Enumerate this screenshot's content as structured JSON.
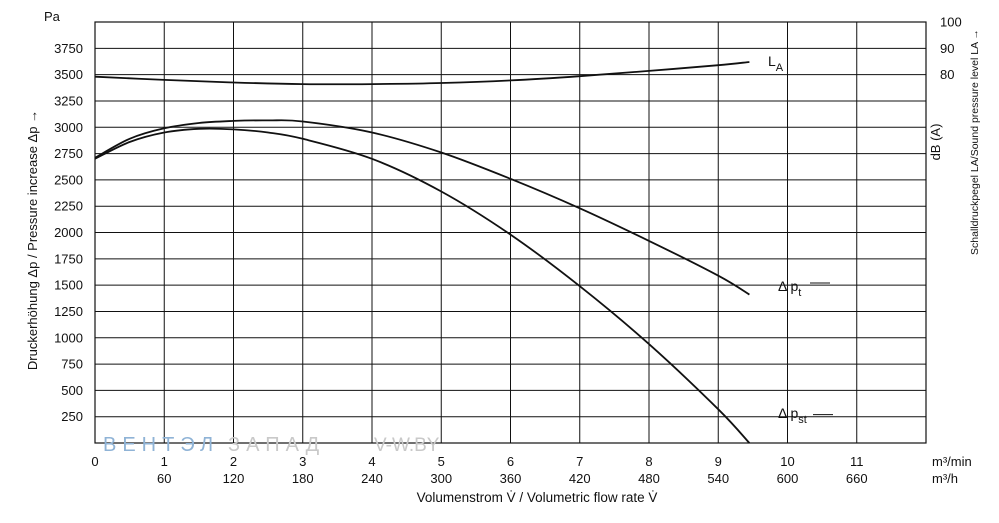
{
  "chart_data": {
    "type": "line",
    "y_left": {
      "unit": "Pa",
      "label": "Druckerhöhung Δp / Pressure increase  Δp →",
      "ticks": [
        250,
        500,
        750,
        1000,
        1250,
        1500,
        1750,
        2000,
        2250,
        2500,
        2750,
        3000,
        3250,
        3500,
        3750
      ],
      "range": [
        0,
        4000
      ]
    },
    "y_right": {
      "unit": "dB (A)",
      "label": "Schalldruckpegel LA/Sound pressure level LA →",
      "ticks": [
        80,
        90,
        100
      ],
      "range": [
        80,
        100
      ]
    },
    "x_primary": {
      "unit": "m³/min",
      "ticks": [
        0,
        1,
        2,
        3,
        4,
        5,
        6,
        7,
        8,
        9,
        10,
        11
      ],
      "range": [
        0,
        12
      ]
    },
    "x_secondary": {
      "unit": "m³/h",
      "ticks": [
        60,
        120,
        180,
        240,
        300,
        360,
        420,
        480,
        540,
        600,
        660
      ]
    },
    "xlabel": "Volumenstrom V̇ / Volumetric flow rate V̇",
    "grid": true,
    "series": [
      {
        "name": "LA",
        "axis": "left_scale",
        "x": [
          0,
          1,
          2,
          3,
          4,
          5,
          6,
          7,
          8,
          9,
          9.45
        ],
        "y": [
          3480,
          3450,
          3425,
          3410,
          3410,
          3420,
          3445,
          3485,
          3535,
          3590,
          3620
        ]
      },
      {
        "name": "Δ pt",
        "x": [
          0,
          0.5,
          1,
          1.5,
          2,
          2.5,
          3,
          4,
          5,
          6,
          7,
          8,
          9,
          9.45
        ],
        "y": [
          2710,
          2890,
          2990,
          3040,
          3060,
          3065,
          3055,
          2950,
          2760,
          2510,
          2230,
          1920,
          1590,
          1410
        ]
      },
      {
        "name": "Δ pst",
        "x": [
          0,
          0.5,
          1,
          1.5,
          2,
          2.5,
          3,
          4,
          5,
          6,
          7,
          8,
          9,
          9.45
        ],
        "y": [
          2700,
          2860,
          2950,
          2985,
          2980,
          2950,
          2890,
          2700,
          2390,
          1980,
          1490,
          940,
          320,
          0
        ]
      }
    ]
  },
  "watermark": {
    "part1": "ВЕНТЭЛ",
    "part2": "ЗАПАД",
    "site": "V-W.BY"
  },
  "labels": {
    "la": "L",
    "la_sub": "A",
    "pt": "Δ p",
    "pt_sub": "t",
    "pst": "Δ p",
    "pst_sub": "st"
  }
}
